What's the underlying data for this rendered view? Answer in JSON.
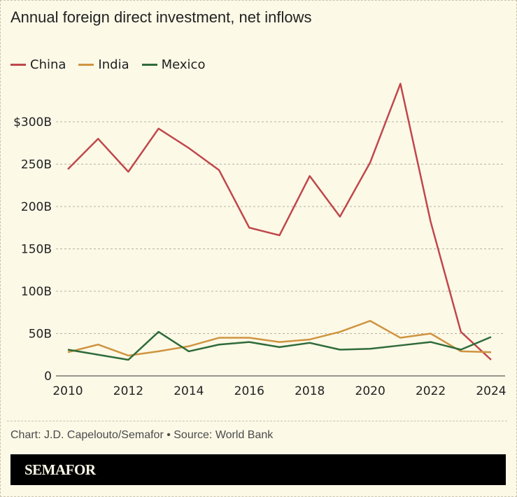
{
  "chart_data": {
    "type": "line",
    "title": "Annual foreign direct investment, net inflows",
    "x": [
      2010,
      2011,
      2012,
      2013,
      2014,
      2015,
      2016,
      2017,
      2018,
      2019,
      2020,
      2021,
      2022,
      2023,
      2024
    ],
    "xticks": [
      "2010",
      "2012",
      "2014",
      "2016",
      "2018",
      "2020",
      "2022",
      "2024"
    ],
    "yticks": [
      {
        "value": 0,
        "label": "0"
      },
      {
        "value": 50,
        "label": "50B"
      },
      {
        "value": 100,
        "label": "100B"
      },
      {
        "value": 150,
        "label": "150B"
      },
      {
        "value": 200,
        "label": "200B"
      },
      {
        "value": 250,
        "label": "250B"
      },
      {
        "value": 300,
        "label": "$300B"
      }
    ],
    "ylim": [
      0,
      350
    ],
    "xlim": [
      2010,
      2024
    ],
    "grid": true,
    "legend": "top-left",
    "series": [
      {
        "name": "China",
        "color": "#c0474b",
        "values": [
          244,
          280,
          241,
          292,
          269,
          243,
          175,
          166,
          236,
          188,
          252,
          345,
          182,
          52,
          19
        ]
      },
      {
        "name": "India",
        "color": "#cf9440",
        "values": [
          28,
          37,
          24,
          29,
          35,
          45,
          45,
          40,
          43,
          52,
          65,
          45,
          50,
          29,
          28
        ]
      },
      {
        "name": "Mexico",
        "color": "#2f6b3a",
        "values": [
          31,
          25,
          19,
          52,
          29,
          37,
          40,
          34,
          39,
          31,
          32,
          36,
          40,
          31,
          46
        ]
      }
    ]
  },
  "credit": "Chart: J.D. Capelouto/Semafor • Source: World Bank",
  "brand": "SEMAFOR"
}
